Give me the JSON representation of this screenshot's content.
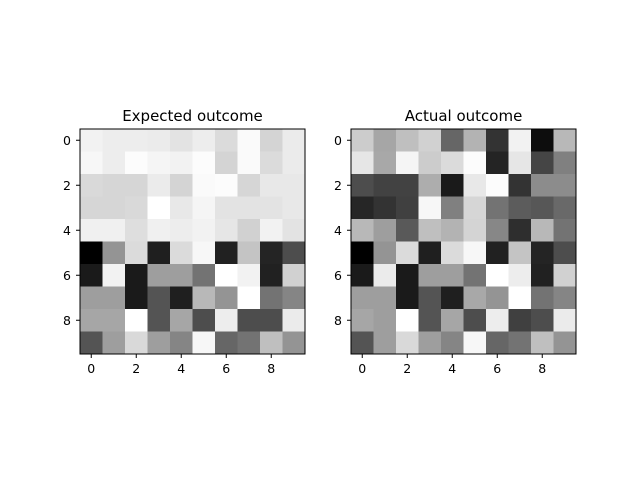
{
  "chart_data": [
    {
      "type": "heatmap",
      "title": "Expected outcome",
      "colormap": "gray",
      "xlim": [
        -0.5,
        9.5
      ],
      "ylim": [
        9.5,
        -0.5
      ],
      "xticks": [
        0,
        2,
        4,
        6,
        8
      ],
      "yticks": [
        0,
        2,
        4,
        6,
        8
      ],
      "xlabel": "",
      "ylabel": "",
      "grid": false,
      "values": [
        [
          0.95,
          0.93,
          0.93,
          0.92,
          0.89,
          0.93,
          0.86,
          0.98,
          0.83,
          0.92
        ],
        [
          0.97,
          0.93,
          0.99,
          0.96,
          0.95,
          0.99,
          0.83,
          0.98,
          0.86,
          0.92
        ],
        [
          0.85,
          0.84,
          0.84,
          0.92,
          0.83,
          0.98,
          0.99,
          0.84,
          0.91,
          0.91
        ],
        [
          0.84,
          0.84,
          0.85,
          1.0,
          0.91,
          0.96,
          0.89,
          0.89,
          0.89,
          0.91
        ],
        [
          0.94,
          0.94,
          0.87,
          0.94,
          0.93,
          0.95,
          0.9,
          0.82,
          0.95,
          0.89
        ],
        [
          0.0,
          0.58,
          0.86,
          0.12,
          0.86,
          0.97,
          0.13,
          0.77,
          0.14,
          0.3
        ],
        [
          0.1,
          0.95,
          0.1,
          0.62,
          0.62,
          0.45,
          1.0,
          0.95,
          0.13,
          0.82
        ],
        [
          0.62,
          0.62,
          0.1,
          0.33,
          0.12,
          0.72,
          0.58,
          1.0,
          0.45,
          0.52
        ],
        [
          0.65,
          0.65,
          1.0,
          0.33,
          0.65,
          0.3,
          0.93,
          0.3,
          0.3,
          0.92
        ],
        [
          0.33,
          0.62,
          0.85,
          0.62,
          0.52,
          0.97,
          0.4,
          0.45,
          0.75,
          0.58
        ]
      ]
    },
    {
      "type": "heatmap",
      "title": "Actual outcome",
      "colormap": "gray",
      "xlim": [
        -0.5,
        9.5
      ],
      "ylim": [
        9.5,
        -0.5
      ],
      "xticks": [
        0,
        2,
        4,
        6,
        8
      ],
      "yticks": [
        0,
        2,
        4,
        6,
        8
      ],
      "xlabel": "",
      "ylabel": "",
      "grid": false,
      "values": [
        [
          0.8,
          0.65,
          0.75,
          0.82,
          0.4,
          0.7,
          0.2,
          0.95,
          0.05,
          0.72
        ],
        [
          0.9,
          0.66,
          0.96,
          0.8,
          0.86,
          0.99,
          0.14,
          0.9,
          0.27,
          0.5
        ],
        [
          0.3,
          0.26,
          0.26,
          0.68,
          0.1,
          0.91,
          0.99,
          0.2,
          0.55,
          0.55
        ],
        [
          0.15,
          0.2,
          0.25,
          0.97,
          0.5,
          0.84,
          0.45,
          0.36,
          0.34,
          0.41
        ],
        [
          0.72,
          0.62,
          0.35,
          0.75,
          0.7,
          0.83,
          0.53,
          0.18,
          0.72,
          0.45
        ],
        [
          0.0,
          0.58,
          0.86,
          0.12,
          0.86,
          0.97,
          0.13,
          0.77,
          0.14,
          0.3
        ],
        [
          0.1,
          0.92,
          0.1,
          0.62,
          0.62,
          0.45,
          1.0,
          0.93,
          0.13,
          0.82
        ],
        [
          0.62,
          0.62,
          0.1,
          0.33,
          0.12,
          0.66,
          0.58,
          1.0,
          0.45,
          0.52
        ],
        [
          0.65,
          0.62,
          1.0,
          0.33,
          0.65,
          0.3,
          0.93,
          0.25,
          0.3,
          0.92
        ],
        [
          0.33,
          0.62,
          0.85,
          0.62,
          0.52,
          0.97,
          0.4,
          0.45,
          0.75,
          0.58
        ]
      ]
    }
  ]
}
